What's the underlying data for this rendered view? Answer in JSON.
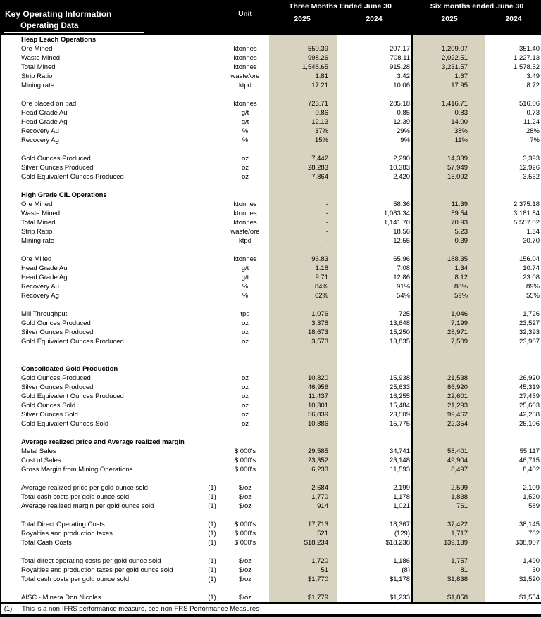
{
  "header": {
    "title": "Key Operating Information",
    "subtitle": "Operating Data",
    "unit_label": "Unit",
    "col_groups": [
      {
        "label": "Three Months Ended June 30",
        "years": [
          "2025",
          "2024"
        ]
      },
      {
        "label": "Six months ended June 30",
        "years": [
          "2025",
          "2024"
        ]
      }
    ]
  },
  "colors": {
    "header_bg": "#000000",
    "header_text": "#ffffff",
    "highlight_column": "#d8d3be"
  },
  "table": {
    "rows": [
      {
        "type": "section",
        "label": "Heap Leach Operations"
      },
      {
        "type": "data",
        "label": "Ore Mined",
        "note": "",
        "unit": "ktonnes",
        "values": [
          "550.39",
          "207.17",
          "1,209.07",
          "351.40"
        ]
      },
      {
        "type": "data",
        "label": "Waste Mined",
        "note": "",
        "unit": "ktonnes",
        "values": [
          "998.26",
          "708.11",
          "2,022.51",
          "1,227.13"
        ]
      },
      {
        "type": "data",
        "label": "Total Mined",
        "note": "",
        "unit": "ktonnes",
        "values": [
          "1,548.65",
          "915.28",
          "3,231.57",
          "1,578.52"
        ]
      },
      {
        "type": "data",
        "label": "Strip Ratio",
        "note": "",
        "unit": "waste/ore",
        "values": [
          "1.81",
          "3.42",
          "1.67",
          "3.49"
        ]
      },
      {
        "type": "data",
        "label": "Mining rate",
        "note": "",
        "unit": "ktpd",
        "values": [
          "17.21",
          "10.06",
          "17.95",
          "8.72"
        ]
      },
      {
        "type": "blank"
      },
      {
        "type": "data",
        "label": "Ore placed on pad",
        "note": "",
        "unit": "ktonnes",
        "values": [
          "723.71",
          "285.18",
          "1,416.71",
          "516.06"
        ]
      },
      {
        "type": "data",
        "label": "Head Grade Au",
        "note": "",
        "unit": "g/t",
        "values": [
          "0.86",
          "0.85",
          "0.83",
          "0.73"
        ]
      },
      {
        "type": "data",
        "label": "Head Grade Ag",
        "note": "",
        "unit": "g/t",
        "values": [
          "12.13",
          "12.39",
          "14.00",
          "11.24"
        ]
      },
      {
        "type": "data",
        "label": "Recovery Au",
        "note": "",
        "unit": "%",
        "values": [
          "37%",
          "29%",
          "38%",
          "28%"
        ]
      },
      {
        "type": "data",
        "label": "Recovery Ag",
        "note": "",
        "unit": "%",
        "values": [
          "15%",
          "9%",
          "11%",
          "7%"
        ]
      },
      {
        "type": "blank"
      },
      {
        "type": "data",
        "label": "Gold Ounces Produced",
        "note": "",
        "unit": "oz",
        "values": [
          "7,442",
          "2,290",
          "14,339",
          "3,393"
        ]
      },
      {
        "type": "data",
        "label": "Silver Ounces Produced",
        "note": "",
        "unit": "oz",
        "values": [
          "28,283",
          "10,383",
          "57,949",
          "12,926"
        ]
      },
      {
        "type": "data",
        "label": "Gold Equivalent Ounces Produced",
        "note": "",
        "unit": "oz",
        "values": [
          "7,864",
          "2,420",
          "15,092",
          "3,552"
        ]
      },
      {
        "type": "blank"
      },
      {
        "type": "section",
        "label": "High Grade CIL Operations"
      },
      {
        "type": "data",
        "label": "Ore Mined",
        "note": "",
        "unit": "ktonnes",
        "values": [
          "-",
          "58.36",
          "11.39",
          "2,375.18"
        ]
      },
      {
        "type": "data",
        "label": "Waste Mined",
        "note": "",
        "unit": "ktonnes",
        "values": [
          "-",
          "1,083.34",
          "59.54",
          "3,181.84"
        ]
      },
      {
        "type": "data",
        "label": "Total Mined",
        "note": "",
        "unit": "ktonnes",
        "values": [
          "-",
          "1,141.70",
          "70.93",
          "5,557.02"
        ]
      },
      {
        "type": "data",
        "label": "Strip Ratio",
        "note": "",
        "unit": "waste/ore",
        "values": [
          "-",
          "18.56",
          "5.23",
          "1.34"
        ]
      },
      {
        "type": "data",
        "label": "Mining rate",
        "note": "",
        "unit": "ktpd",
        "values": [
          "-",
          "12.55",
          "0.39",
          "30.70"
        ]
      },
      {
        "type": "blank"
      },
      {
        "type": "data",
        "label": "Ore Milled",
        "note": "",
        "unit": "ktonnes",
        "values": [
          "96.83",
          "65.96",
          "188.35",
          "156.04"
        ]
      },
      {
        "type": "data",
        "label": "Head Grade Au",
        "note": "",
        "unit": "g/t",
        "values": [
          "1.18",
          "7.08",
          "1.34",
          "10.74"
        ]
      },
      {
        "type": "data",
        "label": "Head Grade Ag",
        "note": "",
        "unit": "g/t",
        "values": [
          "9.71",
          "12.86",
          "8.12",
          "23.08"
        ]
      },
      {
        "type": "data",
        "label": "Recovery Au",
        "note": "",
        "unit": "%",
        "values": [
          "84%",
          "91%",
          "88%",
          "89%"
        ]
      },
      {
        "type": "data",
        "label": "Recovery Ag",
        "note": "",
        "unit": "%",
        "values": [
          "62%",
          "54%",
          "59%",
          "55%"
        ]
      },
      {
        "type": "blank"
      },
      {
        "type": "data",
        "label": "Mill Throughput",
        "note": "",
        "unit": "tpd",
        "values": [
          "1,076",
          "725",
          "1,046",
          "1,726"
        ]
      },
      {
        "type": "data",
        "label": "Gold Ounces Produced",
        "note": "",
        "unit": "oz",
        "values": [
          "3,378",
          "13,648",
          "7,199",
          "23,527"
        ]
      },
      {
        "type": "data",
        "label": "Silver Ounces Produced",
        "note": "",
        "unit": "oz",
        "values": [
          "18,673",
          "15,250",
          "28,971",
          "32,393"
        ]
      },
      {
        "type": "data",
        "label": "Gold Equivalent Ounces Produced",
        "note": "",
        "unit": "oz",
        "values": [
          "3,573",
          "13,835",
          "7,509",
          "23,907"
        ]
      },
      {
        "type": "blank"
      },
      {
        "type": "blank"
      },
      {
        "type": "section",
        "label": "Consolidated Gold Production"
      },
      {
        "type": "data",
        "label": "Gold Ounces Produced",
        "note": "",
        "unit": "oz",
        "values": [
          "10,820",
          "15,938",
          "21,538",
          "26,920"
        ]
      },
      {
        "type": "data",
        "label": "Silver Ounces Produced",
        "note": "",
        "unit": "oz",
        "values": [
          "46,956",
          "25,633",
          "86,920",
          "45,319"
        ]
      },
      {
        "type": "data",
        "label": "Gold Equivalent Ounces Produced",
        "note": "",
        "unit": "oz",
        "values": [
          "11,437",
          "16,255",
          "22,601",
          "27,459"
        ]
      },
      {
        "type": "data",
        "label": "Gold Ounces Sold",
        "note": "",
        "unit": "oz",
        "values": [
          "10,301",
          "15,484",
          "21,293",
          "25,603"
        ]
      },
      {
        "type": "data",
        "label": "Silver Ounces Sold",
        "note": "",
        "unit": "oz",
        "values": [
          "56,839",
          "23,509",
          "99,462",
          "42,258"
        ]
      },
      {
        "type": "data",
        "label": "Gold Equivalent Ounces Sold",
        "note": "",
        "unit": "oz",
        "values": [
          "10,886",
          "15,775",
          "22,354",
          "26,106"
        ]
      },
      {
        "type": "blank"
      },
      {
        "type": "section",
        "label": "Average realized price and Average realized margin"
      },
      {
        "type": "data",
        "label": "Metal Sales",
        "note": "",
        "unit": "$ 000's",
        "values": [
          "29,585",
          "34,741",
          "58,401",
          "55,117"
        ]
      },
      {
        "type": "data",
        "label": "Cost of Sales",
        "note": "",
        "unit": "$ 000's",
        "values": [
          "23,352",
          "23,148",
          "49,904",
          "46,715"
        ]
      },
      {
        "type": "data",
        "label": "Gross Margin from Mining Operations",
        "note": "",
        "unit": "$ 000's",
        "values": [
          "6,233",
          "11,593",
          "8,497",
          "8,402"
        ]
      },
      {
        "type": "blank"
      },
      {
        "type": "data",
        "label": "Average realized price per gold ounce sold",
        "note": "(1)",
        "unit": "$/oz",
        "values": [
          "2,684",
          "2,199",
          "2,599",
          "2,109"
        ]
      },
      {
        "type": "data",
        "label": "Total cash costs per gold ounce sold",
        "note": "(1)",
        "unit": "$/oz",
        "values": [
          "1,770",
          "1,178",
          "1,838",
          "1,520"
        ]
      },
      {
        "type": "data",
        "label": "Average realized margin per gold ounce sold",
        "note": "(1)",
        "unit": "$/oz",
        "values": [
          "914",
          "1,021",
          "761",
          "589"
        ]
      },
      {
        "type": "blank"
      },
      {
        "type": "data",
        "label": "Total Direct Operating Costs",
        "note": "(1)",
        "unit": "$ 000's",
        "values": [
          "17,713",
          "18,367",
          "37,422",
          "38,145"
        ]
      },
      {
        "type": "data",
        "label": "Royalties and production taxes",
        "note": "(1)",
        "unit": "$ 000's",
        "values": [
          "521",
          "(129)",
          "1,717",
          "762"
        ]
      },
      {
        "type": "data",
        "label": "Total Cash Costs",
        "note": "(1)",
        "unit": "$ 000's",
        "values": [
          "$18,234",
          "$18,238",
          "$39,139",
          "$38,907"
        ]
      },
      {
        "type": "blank"
      },
      {
        "type": "data",
        "label": "Total direct operating costs per gold ounce sold",
        "note": "(1)",
        "unit": "$/oz",
        "values": [
          "1,720",
          "1,186",
          "1,757",
          "1,490"
        ]
      },
      {
        "type": "data",
        "label": "Royalties and production taxes per gold ounce sold",
        "note": "(1)",
        "unit": "$/oz",
        "values": [
          "51",
          "(8)",
          "81",
          "30"
        ]
      },
      {
        "type": "data",
        "label": "Total cash costs per gold ounce sold",
        "note": "(1)",
        "unit": "$/oz",
        "values": [
          "$1,770",
          "$1,178",
          "$1,838",
          "$1,520"
        ]
      },
      {
        "type": "blank"
      },
      {
        "type": "data",
        "label": "AISC - Minera Don Nicolas",
        "note": "(1)",
        "unit": "$/oz",
        "values": [
          "$1,779",
          "$1,233",
          "$1,858",
          "$1,554"
        ]
      }
    ]
  },
  "footnote": {
    "marker": "(1)",
    "text": "This is a non-IFRS performance measure, see non-FRS Performance Measures"
  }
}
